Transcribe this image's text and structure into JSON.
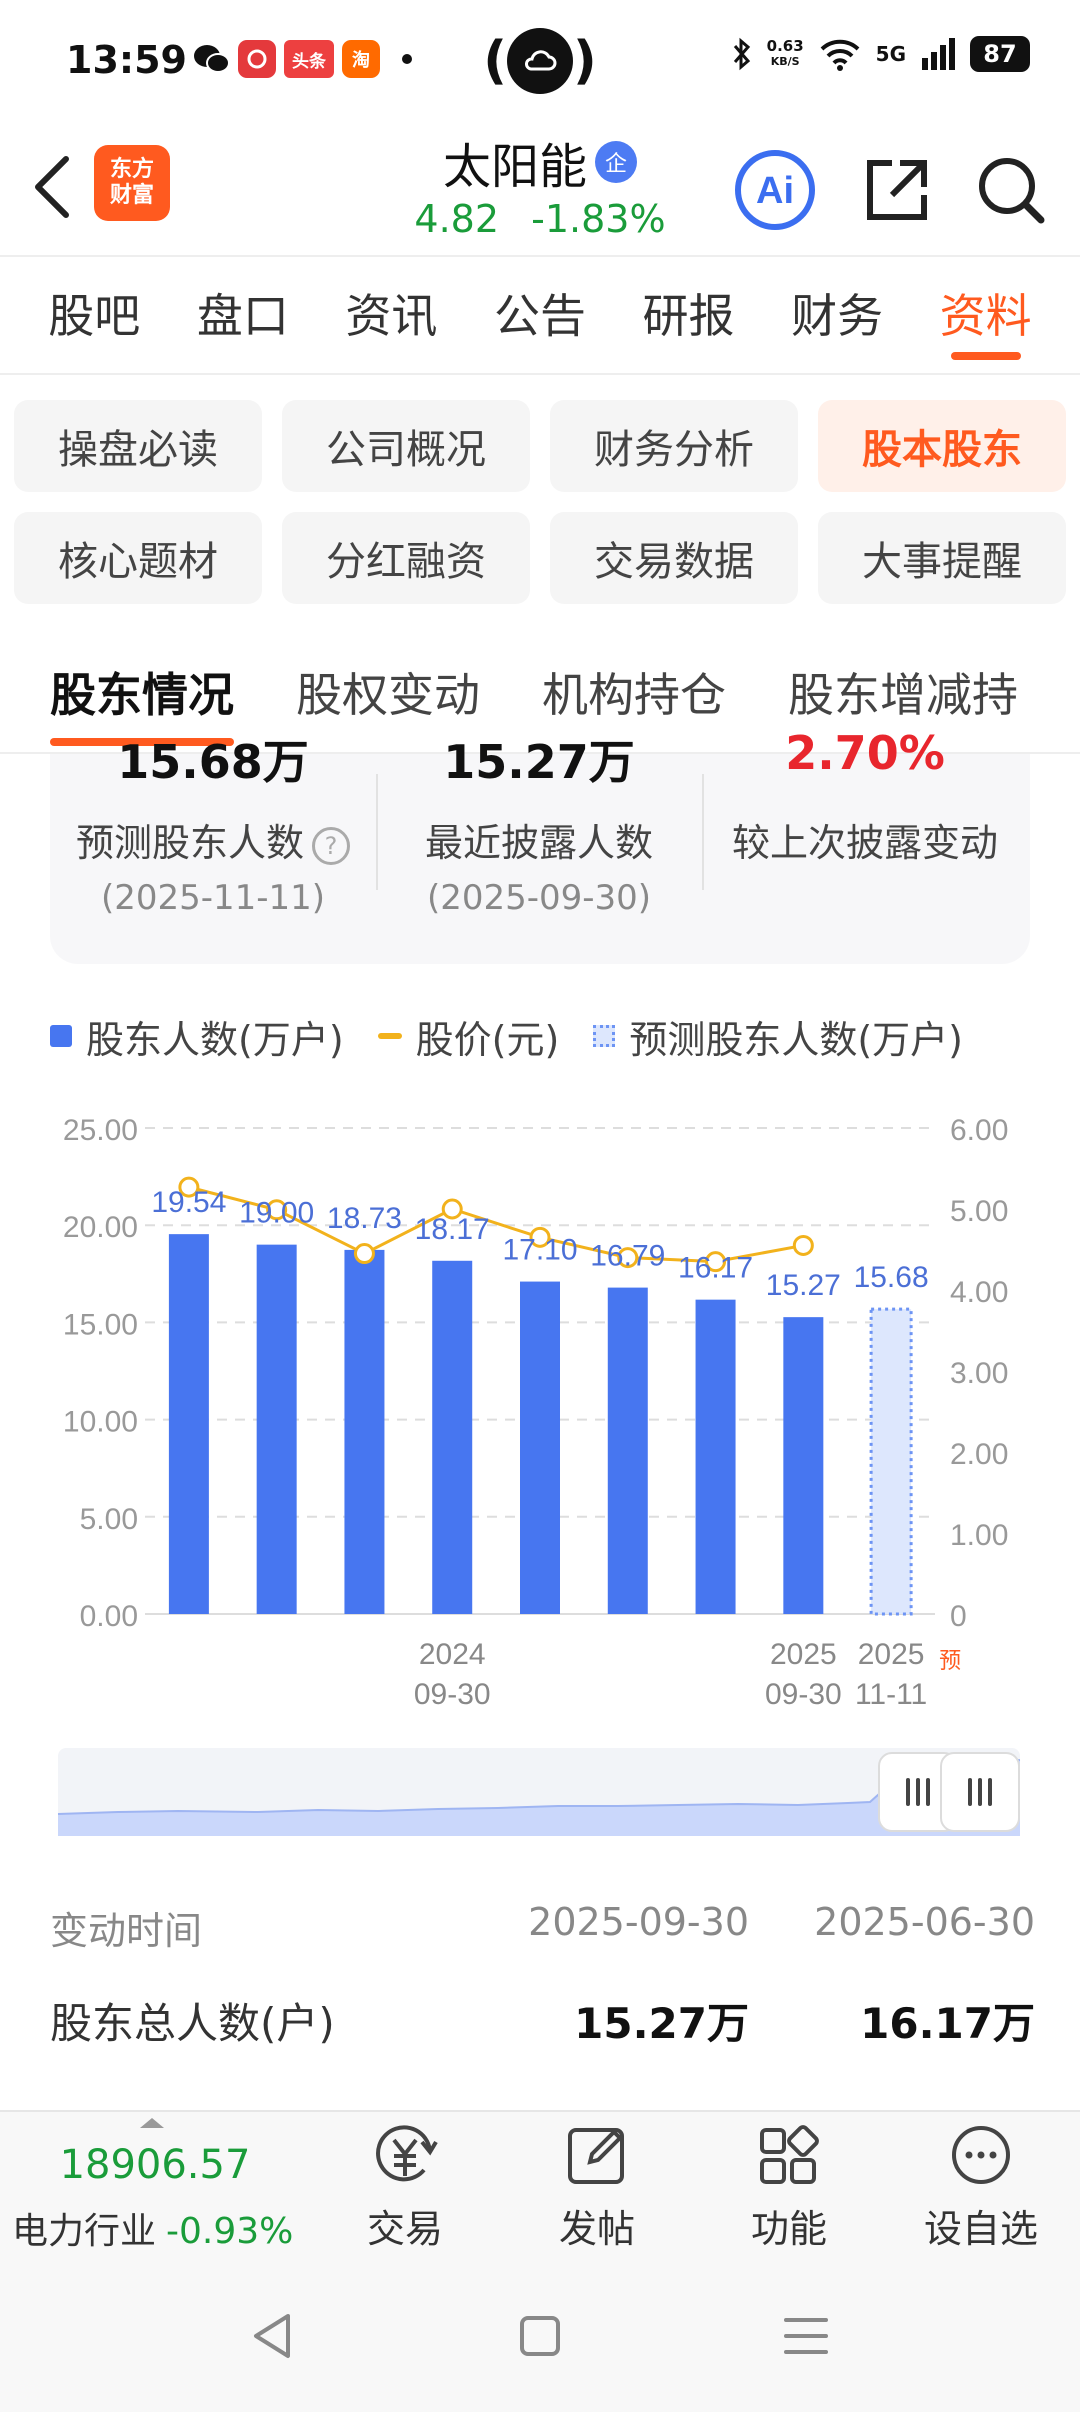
{
  "status_bar": {
    "time": "13:59",
    "apps": [
      "wechat-icon",
      "netease-music-icon",
      "toutiao-icon",
      "taobao-icon"
    ],
    "toutiao_label": "头条",
    "taobao_label": "淘",
    "net_speed_value": "0.63",
    "net_speed_unit": "KB/S",
    "network": "5G",
    "battery": "87"
  },
  "header": {
    "logo_line1": "东方",
    "logo_line2": "财富",
    "stock_name": "太阳能",
    "badge": "企",
    "price": "4.82",
    "change": "-1.83%",
    "ai_label": "Ai"
  },
  "main_tabs": [
    "股吧",
    "盘口",
    "资讯",
    "公告",
    "研报",
    "财务",
    "资料"
  ],
  "active_main_tab": "资料",
  "sub_tabs": [
    "操盘必读",
    "公司概况",
    "财务分析",
    "股本股东",
    "核心题材",
    "分红融资",
    "交易数据",
    "大事提醒"
  ],
  "active_sub_tab": "股本股东",
  "holder_tabs": [
    "股东情况",
    "股权变动",
    "机构持仓",
    "股东增减持"
  ],
  "active_holder_tab": "股东情况",
  "stats": [
    {
      "value": "15.68万",
      "label": "预测股东人数",
      "date": "(2025-11-11)"
    },
    {
      "value": "15.27万",
      "label": "最近披露人数",
      "date": "(2025-09-30)"
    },
    {
      "value": "2.70%",
      "label": "较上次披露变动",
      "date": ""
    }
  ],
  "legend": {
    "holders": "股东人数(万户)",
    "price": "股价(元)",
    "forecast": "预测股东人数(万户)"
  },
  "colors": {
    "accent": "#ff5a1f",
    "bar": "#4776f0",
    "price_line": "#f2b21c",
    "down": "#1a9c3a",
    "up": "#e8262d"
  },
  "chart_data": {
    "type": "bar",
    "y_left_ticks": [
      "25.00",
      "20.00",
      "15.00",
      "10.00",
      "5.00",
      "0.00"
    ],
    "y_right_ticks": [
      "6.00",
      "5.00",
      "4.00",
      "3.00",
      "2.00",
      "1.00",
      "0"
    ],
    "ylim_left": [
      0,
      25
    ],
    "ylim_right": [
      0,
      6
    ],
    "x_labels": [
      {
        "index": 3,
        "line1": "2024",
        "line2": "09-30"
      },
      {
        "index": 7,
        "line1": "2025",
        "line2": "09-30"
      },
      {
        "index": 8,
        "line1": "2025",
        "line2": "11-11"
      }
    ],
    "forecast_marker": "预",
    "series": [
      {
        "name": "股东人数(万户)",
        "values": [
          19.54,
          19.0,
          18.73,
          18.17,
          17.1,
          16.79,
          16.17,
          15.27
        ]
      },
      {
        "name": "股价(元)",
        "values": [
          5.27,
          4.99,
          4.45,
          5.0,
          4.65,
          4.4,
          4.35,
          4.55
        ]
      },
      {
        "name": "预测股东人数(万户)",
        "values": [
          null,
          null,
          null,
          null,
          null,
          null,
          null,
          null,
          15.68
        ]
      }
    ],
    "bar_labels": [
      "19.54",
      "19.00",
      "18.73",
      "18.17",
      "17.10",
      "16.79",
      "16.17",
      "15.27",
      "15.68"
    ],
    "grid": true
  },
  "table": {
    "header": [
      "变动时间",
      "2025-09-30",
      "2025-06-30"
    ],
    "rows": [
      {
        "label": "股东总人数(户)",
        "values": [
          "15.27万",
          "16.17万"
        ]
      }
    ]
  },
  "bottom_bar": {
    "index_value": "18906.57",
    "index_name": "电力行业",
    "index_change": "-0.93%",
    "items": [
      {
        "icon": "trade-icon",
        "label": "交易"
      },
      {
        "icon": "post-icon",
        "label": "发帖"
      },
      {
        "icon": "function-icon",
        "label": "功能"
      },
      {
        "icon": "add-watchlist-icon",
        "label": "设自选"
      }
    ]
  }
}
